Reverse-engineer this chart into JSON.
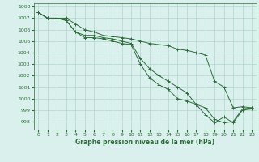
{
  "title": "Graphe pression niveau de la mer (hPa)",
  "xlim": [
    -0.5,
    23.5
  ],
  "ylim": [
    997.3,
    1008.3
  ],
  "yticks": [
    998,
    999,
    1000,
    1001,
    1002,
    1003,
    1004,
    1005,
    1006,
    1007,
    1008
  ],
  "xticks": [
    0,
    1,
    2,
    3,
    4,
    5,
    6,
    7,
    8,
    9,
    10,
    11,
    12,
    13,
    14,
    15,
    16,
    17,
    18,
    19,
    20,
    21,
    22,
    23
  ],
  "bg_color": "#daf0ec",
  "grid_color": "#aacfc8",
  "line_color": "#2d6b3c",
  "line1": [
    1007.5,
    1007.0,
    1007.0,
    1007.0,
    1006.5,
    1006.0,
    1005.8,
    1005.5,
    1005.4,
    1005.3,
    1005.2,
    1005.0,
    1004.8,
    1004.7,
    1004.6,
    1004.3,
    1004.2,
    1004.0,
    1003.8,
    1001.5,
    1001.0,
    999.2,
    999.3,
    999.2
  ],
  "line2": [
    1007.5,
    1007.0,
    1007.0,
    1006.8,
    1005.8,
    1005.5,
    1005.5,
    1005.3,
    1005.2,
    1005.0,
    1004.8,
    1003.5,
    1002.6,
    1002.0,
    1001.5,
    1001.0,
    1000.5,
    999.5,
    998.6,
    997.9,
    998.4,
    997.9,
    999.0,
    999.1
  ],
  "line3": [
    1007.5,
    1007.0,
    1007.0,
    1006.8,
    1005.8,
    1005.3,
    1005.3,
    1005.2,
    1005.0,
    1004.8,
    1004.7,
    1003.0,
    1001.8,
    1001.2,
    1000.8,
    1000.0,
    999.8,
    999.5,
    999.2,
    998.2,
    997.9,
    998.0,
    999.1,
    999.2
  ]
}
